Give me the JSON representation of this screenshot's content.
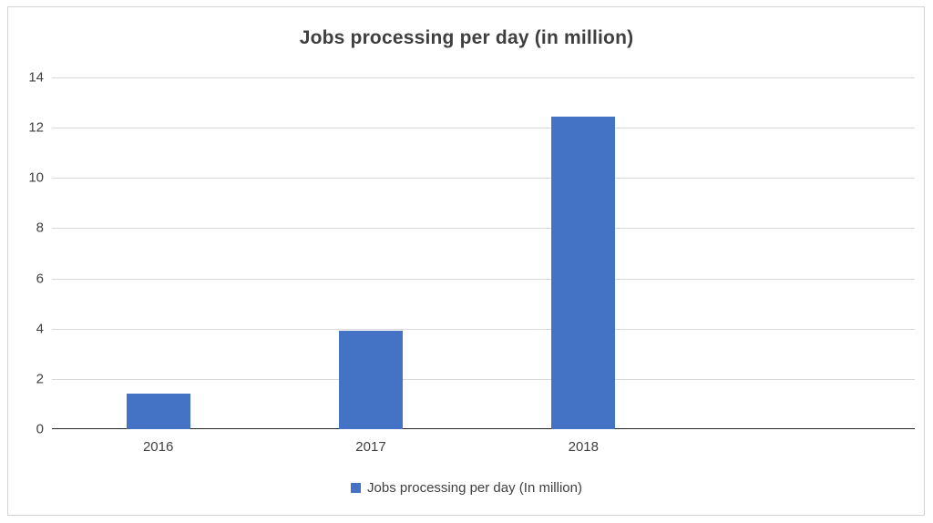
{
  "chart_data": {
    "type": "bar",
    "title": "Jobs processing per day (in million)",
    "categories": [
      "2016",
      "2017",
      "2018"
    ],
    "values": [
      1.4,
      3.9,
      12.45
    ],
    "xlabel": "",
    "ylabel": "",
    "ylim": [
      0,
      14
    ],
    "yticks": [
      0,
      2,
      4,
      6,
      8,
      10,
      12,
      14
    ],
    "grid": true,
    "legend": [
      "Jobs processing per day (In million)"
    ],
    "legend_position": "bottom",
    "bar_color": "#4472C4"
  }
}
